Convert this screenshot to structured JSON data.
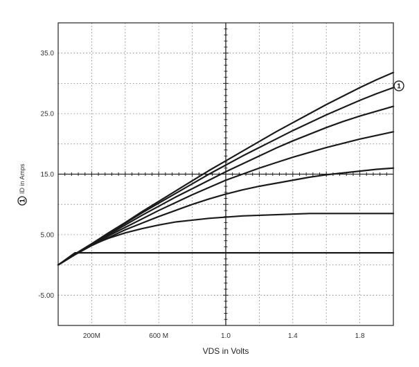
{
  "chart_data": {
    "type": "line",
    "title": "",
    "xlabel": "VDS in Volts",
    "ylabel": "ID in Amps",
    "ylabel_marker": "1",
    "curve_marker": "1",
    "xlim": [
      0,
      2.0
    ],
    "ylim": [
      -10,
      40
    ],
    "grid": true,
    "x_ticks": [
      {
        "value": 0.2,
        "label": "200M"
      },
      {
        "value": 0.6,
        "label": "600 M"
      },
      {
        "value": 1.0,
        "label": "1.0"
      },
      {
        "value": 1.4,
        "label": "1.4"
      },
      {
        "value": 1.8,
        "label": "1.8"
      }
    ],
    "y_ticks": [
      {
        "value": 35,
        "label": "35.0"
      },
      {
        "value": 25,
        "label": "25.0"
      },
      {
        "value": 15,
        "label": "15.0"
      },
      {
        "value": 5,
        "label": "5.00"
      },
      {
        "value": -5,
        "label": "-5.00"
      }
    ],
    "x": [
      0,
      0.1,
      0.2,
      0.3,
      0.4,
      0.5,
      0.6,
      0.7,
      0.8,
      0.9,
      1.0,
      1.1,
      1.2,
      1.3,
      1.4,
      1.5,
      1.6,
      1.7,
      1.8,
      1.9,
      2.0
    ],
    "series": [
      {
        "values": [
          0,
          2,
          2,
          2,
          2,
          2,
          2,
          2,
          2,
          2,
          2,
          2,
          2,
          2,
          2,
          2,
          2,
          2,
          2,
          2,
          2
        ]
      },
      {
        "values": [
          0,
          1.8,
          3.3,
          4.4,
          5.3,
          6,
          6.6,
          7.1,
          7.4,
          7.7,
          7.9,
          8.1,
          8.2,
          8.3,
          8.4,
          8.5,
          8.5,
          8.5,
          8.5,
          8.5,
          8.5
        ]
      },
      {
        "values": [
          0,
          1.7,
          3.2,
          4.5,
          5.8,
          6.9,
          8,
          9,
          10,
          10.9,
          11.7,
          12.4,
          13,
          13.5,
          14,
          14.5,
          14.9,
          15.2,
          15.5,
          15.8,
          16
        ]
      },
      {
        "values": [
          0,
          1.7,
          3.3,
          4.8,
          6.2,
          7.6,
          9,
          10.3,
          11.6,
          12.8,
          14,
          15,
          16,
          16.9,
          17.8,
          18.6,
          19.4,
          20.1,
          20.8,
          21.4,
          22
        ]
      },
      {
        "values": [
          0,
          1.7,
          3.4,
          5,
          6.6,
          8.2,
          9.7,
          11.2,
          12.6,
          14,
          15.4,
          16.7,
          18,
          19.3,
          20.5,
          21.6,
          22.7,
          23.7,
          24.6,
          25.4,
          26.2
        ]
      },
      {
        "values": [
          0,
          1.7,
          3.5,
          5.2,
          6.9,
          8.6,
          10.2,
          11.8,
          13.4,
          15,
          16.5,
          18,
          19.4,
          20.8,
          22.2,
          23.5,
          24.8,
          26,
          27.2,
          28.3,
          29.3
        ]
      },
      {
        "values": [
          0,
          1.8,
          3.5,
          5.3,
          7,
          8.8,
          10.5,
          12.2,
          13.9,
          15.6,
          17.2,
          18.8,
          20.4,
          22,
          23.5,
          25,
          26.5,
          27.9,
          29.3,
          30.6,
          31.8
        ]
      }
    ]
  }
}
